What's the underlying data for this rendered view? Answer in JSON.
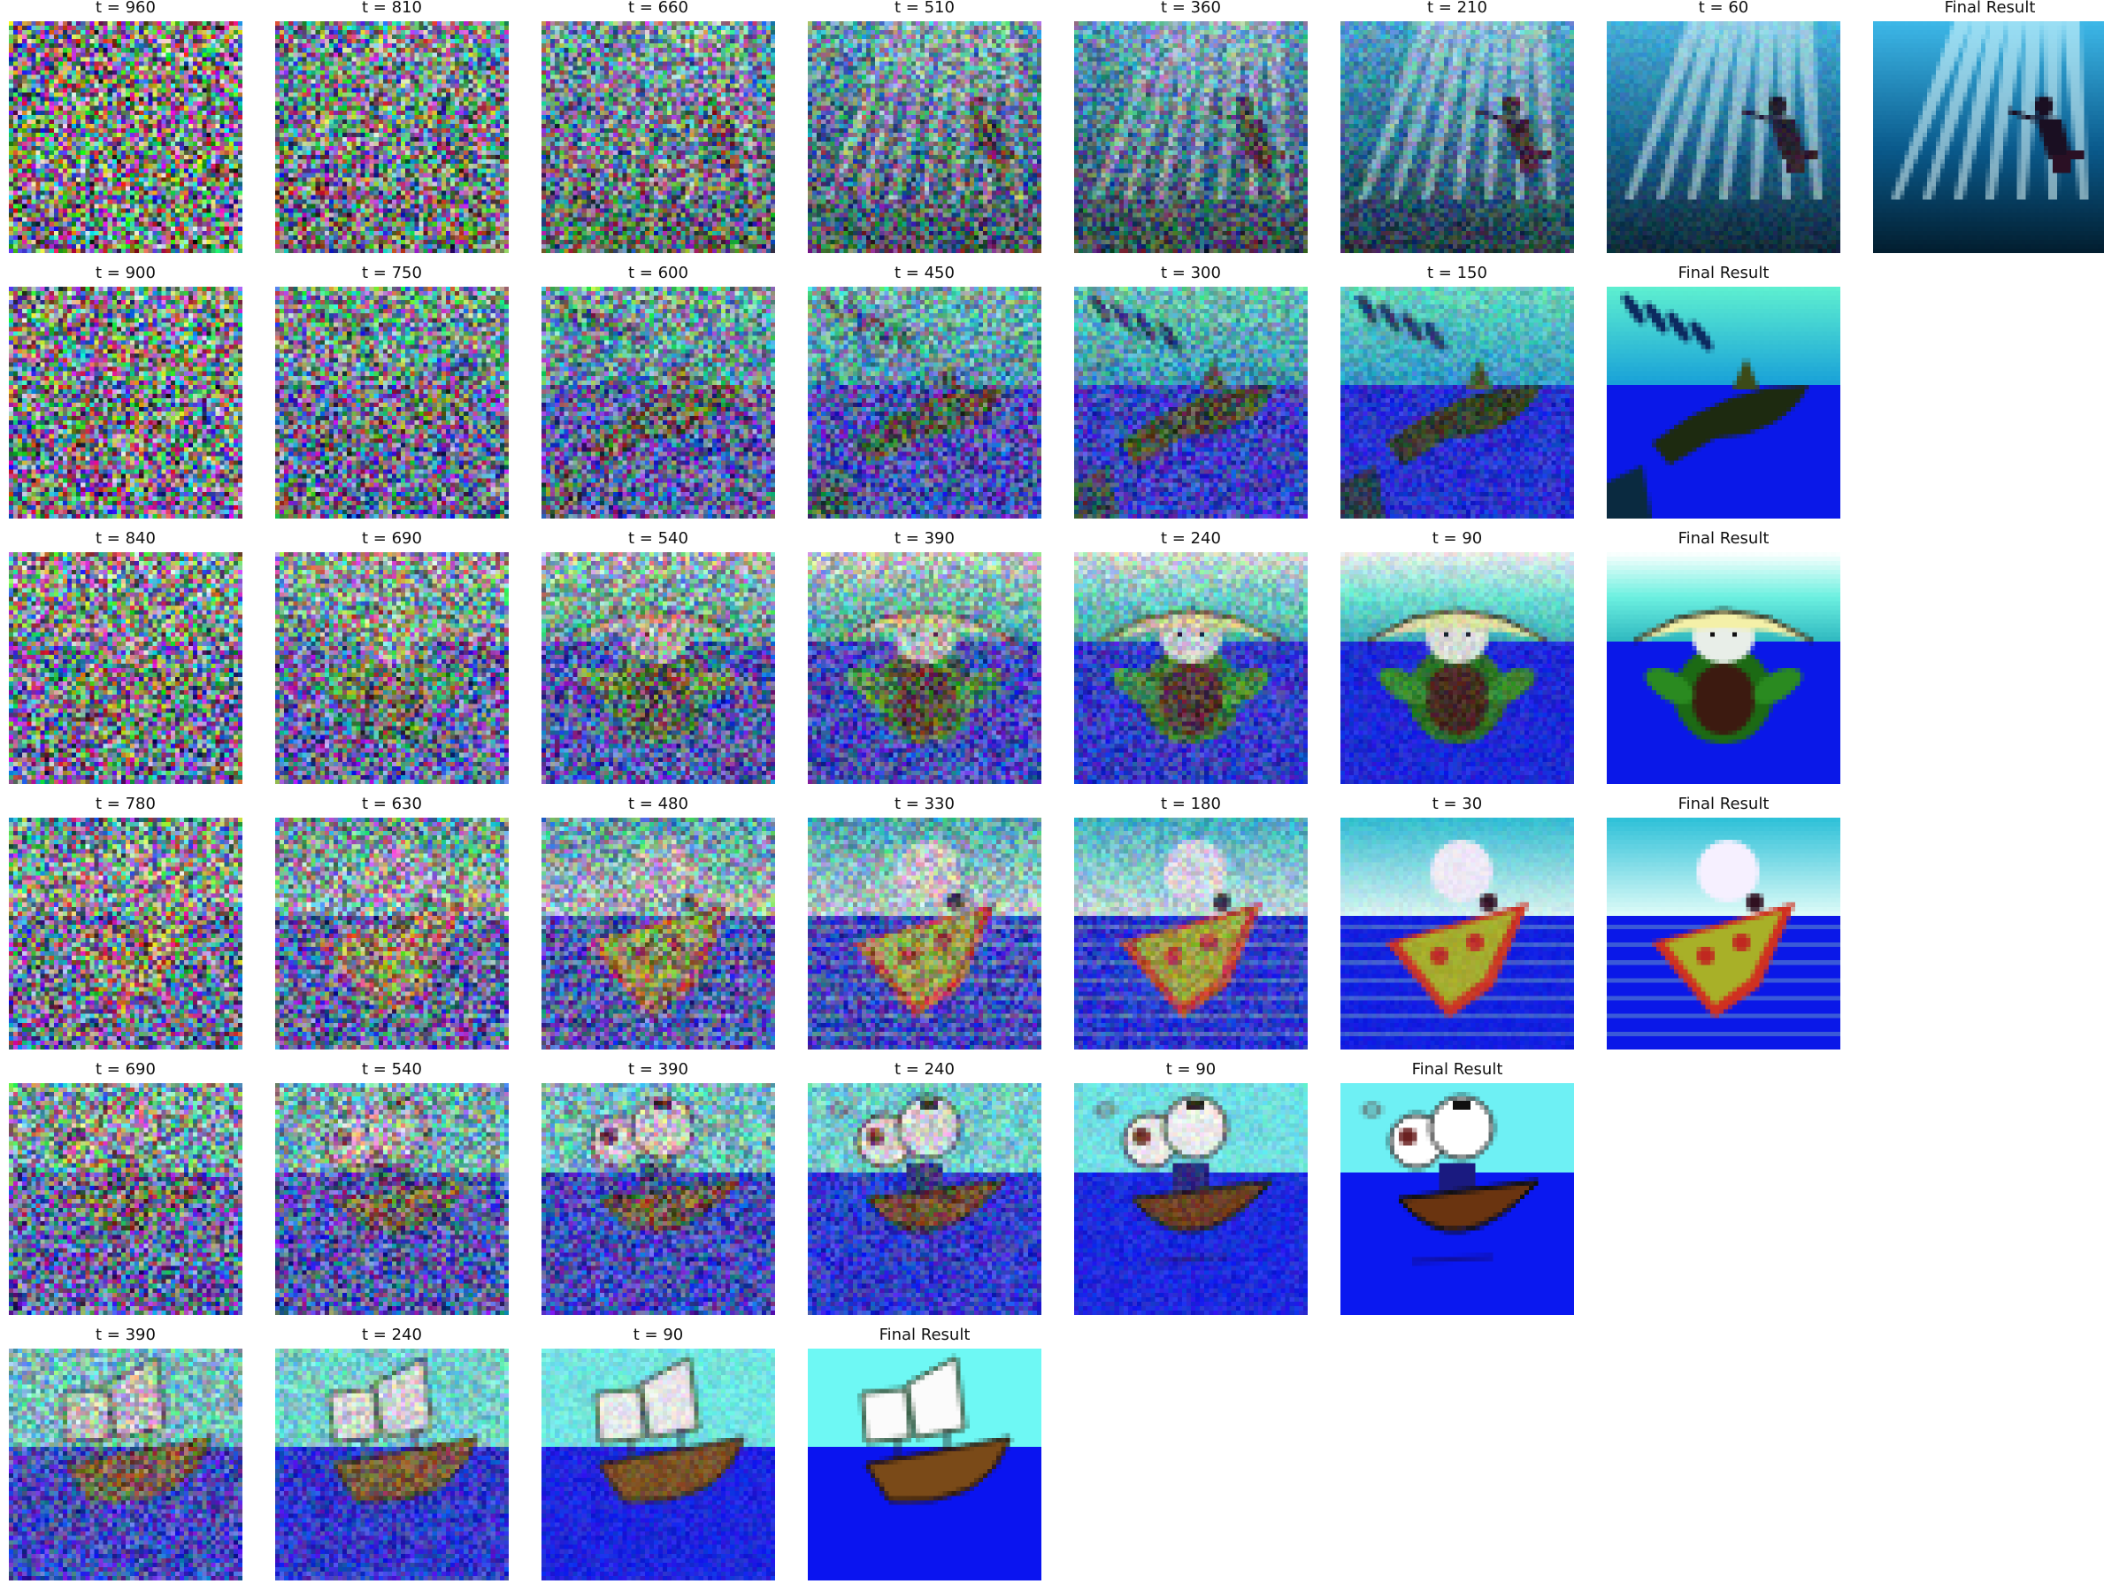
{
  "rows": [
    {
      "scene": "diver",
      "cells": [
        {
          "label": "t = 960",
          "t": 960
        },
        {
          "label": "t = 810",
          "t": 810
        },
        {
          "label": "t = 660",
          "t": 660
        },
        {
          "label": "t = 510",
          "t": 510
        },
        {
          "label": "t = 360",
          "t": 360
        },
        {
          "label": "t = 210",
          "t": 210
        },
        {
          "label": "t = 60",
          "t": 60
        },
        {
          "label": "Final Result",
          "t": 0
        }
      ]
    },
    {
      "scene": "shark",
      "cells": [
        {
          "label": "t = 900",
          "t": 900
        },
        {
          "label": "t = 750",
          "t": 750
        },
        {
          "label": "t = 600",
          "t": 600
        },
        {
          "label": "t = 450",
          "t": 450
        },
        {
          "label": "t = 300",
          "t": 300
        },
        {
          "label": "t = 150",
          "t": 150
        },
        {
          "label": "Final Result",
          "t": 0
        }
      ]
    },
    {
      "scene": "turtle",
      "cells": [
        {
          "label": "t = 840",
          "t": 840
        },
        {
          "label": "t = 690",
          "t": 690
        },
        {
          "label": "t = 540",
          "t": 540
        },
        {
          "label": "t = 390",
          "t": 390
        },
        {
          "label": "t = 240",
          "t": 240
        },
        {
          "label": "t = 90",
          "t": 90
        },
        {
          "label": "Final Result",
          "t": 0
        }
      ]
    },
    {
      "scene": "ray",
      "cells": [
        {
          "label": "t = 780",
          "t": 780
        },
        {
          "label": "t = 630",
          "t": 630
        },
        {
          "label": "t = 480",
          "t": 480
        },
        {
          "label": "t = 330",
          "t": 330
        },
        {
          "label": "t = 180",
          "t": 180
        },
        {
          "label": "t = 30",
          "t": 30
        },
        {
          "label": "Final Result",
          "t": 0
        }
      ]
    },
    {
      "scene": "bear-boat",
      "cells": [
        {
          "label": "t = 690",
          "t": 690
        },
        {
          "label": "t = 540",
          "t": 540
        },
        {
          "label": "t = 390",
          "t": 390
        },
        {
          "label": "t = 240",
          "t": 240
        },
        {
          "label": "t = 90",
          "t": 90
        },
        {
          "label": "Final Result",
          "t": 0
        }
      ]
    },
    {
      "scene": "ship",
      "cells": [
        {
          "label": "t = 390",
          "t": 390
        },
        {
          "label": "t = 240",
          "t": 240
        },
        {
          "label": "t = 90",
          "t": 90
        },
        {
          "label": "Final Result",
          "t": 0
        }
      ]
    }
  ]
}
